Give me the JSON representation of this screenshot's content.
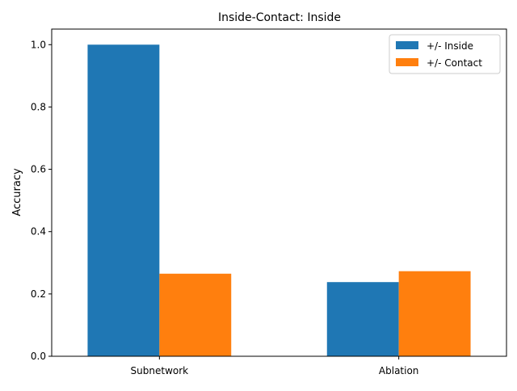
{
  "chart_data": {
    "type": "bar",
    "title": "Inside-Contact: Inside",
    "xlabel": "",
    "ylabel": "Accuracy",
    "categories": [
      "Subnetwork",
      "Ablation"
    ],
    "series": [
      {
        "name": "+/- Inside",
        "values": [
          1.0,
          0.238
        ],
        "color": "#1f77b4"
      },
      {
        "name": "+/- Contact",
        "values": [
          0.265,
          0.273
        ],
        "color": "#ff7f0e"
      }
    ],
    "ylim": [
      0,
      1.05
    ],
    "yticks": [
      0.0,
      0.2,
      0.4,
      0.6,
      0.8,
      1.0
    ],
    "ytick_labels": [
      "0.0",
      "0.2",
      "0.4",
      "0.6",
      "0.8",
      "1.0"
    ],
    "grid": false,
    "legend_position": "top-right"
  }
}
